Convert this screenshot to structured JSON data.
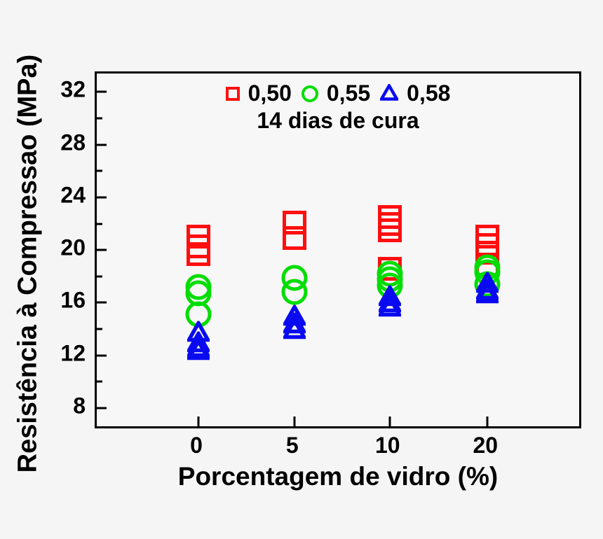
{
  "figure": {
    "background": "#f5f5f5",
    "y_axis_title": "Resistência à Compressao (MPa)",
    "x_axis_title": "Porcentagem de vidro (%)"
  },
  "legend": {
    "items": [
      {
        "label": "0,50",
        "marker": "square",
        "color": "#ff0f0f"
      },
      {
        "label": "0,55",
        "marker": "circle",
        "color": "#00dd00"
      },
      {
        "label": "0,58",
        "marker": "triangle",
        "color": "#0a0af0"
      }
    ],
    "subtitle": "14 dias de cura"
  },
  "chart_data": {
    "type": "scatter",
    "title": "",
    "xlabel": "Porcentagem de vidro (%)",
    "ylabel": "Resistência à Compressao (MPa)",
    "annotation": "14 dias de cura",
    "legend_position": "top-center",
    "grid": false,
    "x_categories": [
      0,
      5,
      10,
      20
    ],
    "x_tick_labels": [
      "0",
      "5",
      "10",
      "20"
    ],
    "x_tick_positions_pct": [
      20.9,
      40.6,
      60.2,
      80.3
    ],
    "ylim": [
      6.3,
      33.4
    ],
    "yticks": [
      8,
      12,
      16,
      20,
      24,
      28,
      32
    ],
    "yticks_minor": [
      10,
      14,
      18,
      22,
      26,
      30
    ],
    "series": [
      {
        "name": "0,50",
        "marker": "square",
        "color": "#ff0f0f",
        "points": [
          {
            "x": 0,
            "y": 21.0
          },
          {
            "x": 0,
            "y": 20.3
          },
          {
            "x": 0,
            "y": 19.7
          },
          {
            "x": 5,
            "y": 22.1
          },
          {
            "x": 5,
            "y": 20.9
          },
          {
            "x": 10,
            "y": 22.5
          },
          {
            "x": 10,
            "y": 22.0
          },
          {
            "x": 10,
            "y": 21.5
          },
          {
            "x": 10,
            "y": 18.6
          },
          {
            "x": 20,
            "y": 21.0
          },
          {
            "x": 20,
            "y": 20.4
          },
          {
            "x": 20,
            "y": 19.8
          },
          {
            "x": 20,
            "y": 18.9
          }
        ]
      },
      {
        "name": "0,55",
        "marker": "circle",
        "color": "#00dd00",
        "points": [
          {
            "x": 0,
            "y": 17.2
          },
          {
            "x": 0,
            "y": 16.7
          },
          {
            "x": 0,
            "y": 15.1
          },
          {
            "x": 5,
            "y": 17.9
          },
          {
            "x": 5,
            "y": 16.8
          },
          {
            "x": 10,
            "y": 18.2
          },
          {
            "x": 10,
            "y": 17.8
          },
          {
            "x": 10,
            "y": 17.3
          },
          {
            "x": 20,
            "y": 18.7
          },
          {
            "x": 20,
            "y": 18.3
          },
          {
            "x": 20,
            "y": 17.4
          }
        ]
      },
      {
        "name": "0,58",
        "marker": "triangle",
        "color": "#0a0af0",
        "points": [
          {
            "x": 0,
            "y": 13.7
          },
          {
            "x": 0,
            "y": 12.9
          },
          {
            "x": 0,
            "y": 12.5
          },
          {
            "x": 0,
            "y": 12.3
          },
          {
            "x": 5,
            "y": 14.9
          },
          {
            "x": 5,
            "y": 14.3
          },
          {
            "x": 5,
            "y": 13.9
          },
          {
            "x": 10,
            "y": 16.4
          },
          {
            "x": 10,
            "y": 15.9
          },
          {
            "x": 10,
            "y": 15.6
          },
          {
            "x": 20,
            "y": 17.4
          },
          {
            "x": 20,
            "y": 16.9
          },
          {
            "x": 20,
            "y": 16.6
          }
        ]
      }
    ]
  }
}
